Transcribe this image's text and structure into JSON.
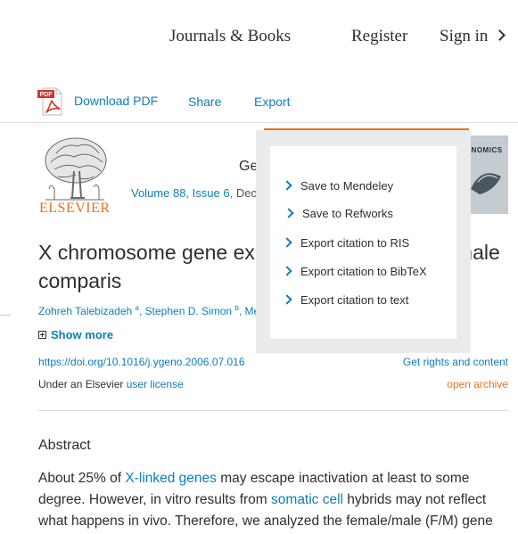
{
  "header": {
    "journals_books": "Journals & Books",
    "register": "Register",
    "sign_in": "Sign in"
  },
  "toolbar": {
    "pdf_icon_label": "PDF",
    "download_pdf": "Download PDF",
    "share": "Share",
    "export": "Export"
  },
  "journal": {
    "logo_word": "ELSEVIER",
    "title_partial": "Gen",
    "volume": "Volume 88, Issue 6,",
    "date_partial": "Dece",
    "cover_label": "GENOMICS"
  },
  "article": {
    "title": "X chromosome gene expr          issues: Male and female comparis",
    "authors": [
      {
        "name": "Zohreh Talebizadeh",
        "sup": "a"
      },
      {
        "name": "Stephen D. Simon",
        "sup": "b"
      }
    ],
    "author_sep": ", ",
    "authors_trail": "Me",
    "show_more": "Show more",
    "doi": "https://doi.org/10.1016/j.ygeno.2006.07.016",
    "rights": "Get rights and content",
    "license_prefix": "Under an Elsevier ",
    "license_link": "user license",
    "open_archive": "open archive"
  },
  "abstract": {
    "heading": "Abstract",
    "p1": "About 25% of ",
    "link1": "X-linked genes",
    "p2": " may escape inactivation at least to some degree. However, in vitro results from ",
    "link2": "somatic cell",
    "p3": " hybrids may not reflect what happens in vivo. Therefore, we analyzed the female/male (F/M) gene"
  },
  "export_menu": {
    "items": [
      "Save to Mendeley",
      "Save to Refworks",
      "Export citation to RIS",
      "Export citation to BibTeX",
      "Export citation to text"
    ]
  },
  "colors": {
    "link_blue": "#0c7dbb",
    "elsevier_orange": "#e9711c",
    "text": "#2e2e2e"
  },
  "icons": [
    "chevron-right-icon",
    "pdf-file-icon",
    "plus-box-icon"
  ]
}
